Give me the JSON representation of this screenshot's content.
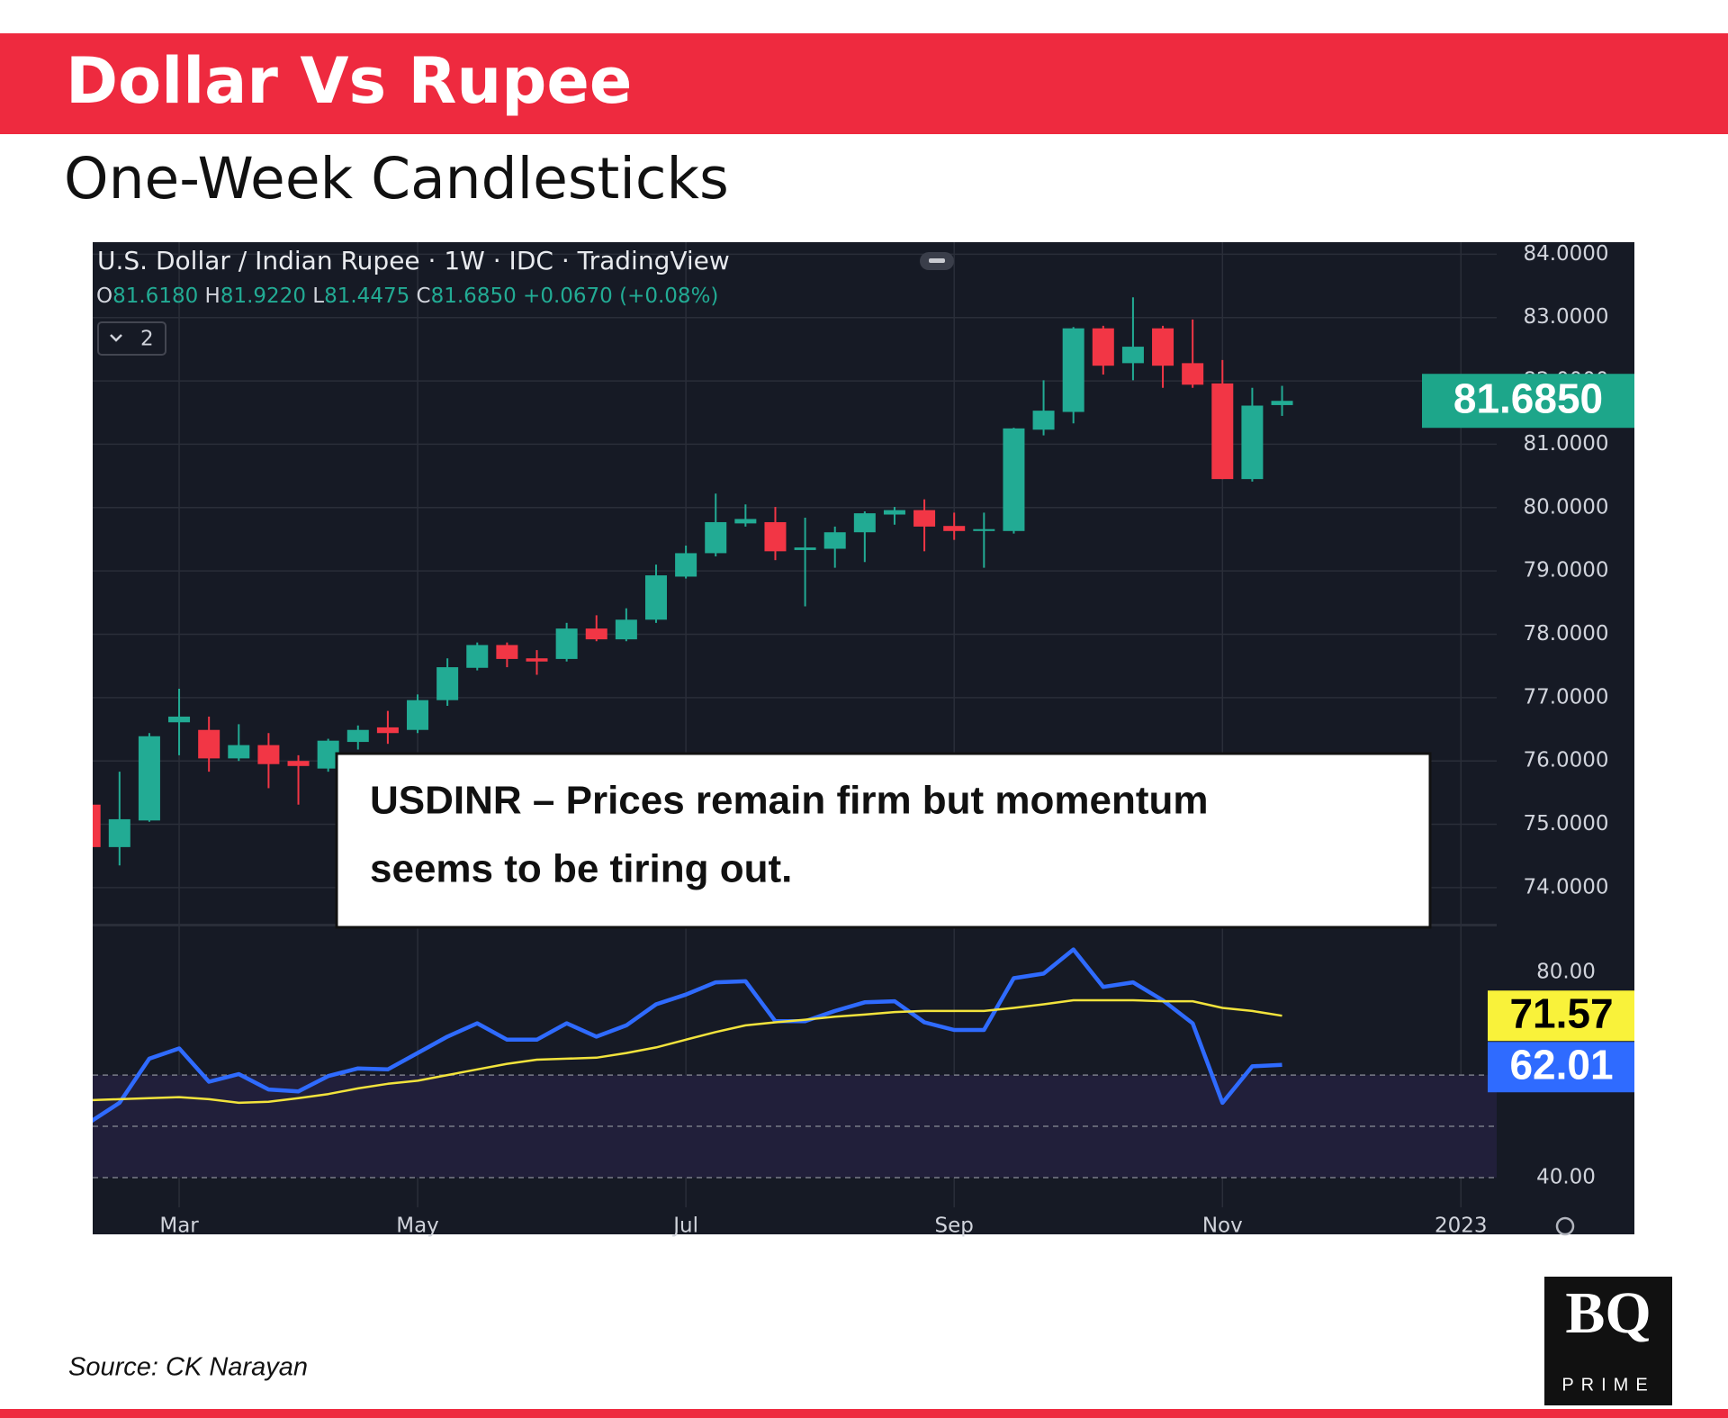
{
  "header": {
    "title": "Dollar Vs Rupee",
    "subtitle": "One-Week Candlesticks"
  },
  "chart_data": [
    {
      "type": "candlestick",
      "title": "U.S. Dollar / Indian Rupee · 1W · IDC · TradingView",
      "ohlc": [
        {
          "key": "O",
          "text": "81.6180"
        },
        {
          "key": "H",
          "text": "81.9220"
        },
        {
          "key": "L",
          "text": "81.4475"
        },
        {
          "key": "C",
          "text": "81.6850"
        }
      ],
      "change": "+0.0670 (+0.08%)",
      "pane_button": "2",
      "categories": [
        null,
        null,
        null,
        null,
        null,
        null,
        null,
        null,
        null,
        null,
        null,
        null,
        null,
        null,
        null,
        null,
        null,
        null,
        null,
        null,
        null,
        null,
        null,
        null,
        null,
        null,
        null,
        null,
        null,
        null,
        null,
        null,
        null,
        null,
        null,
        null,
        null,
        null,
        null,
        null,
        null
      ],
      "open": [
        75.31,
        74.64,
        75.06,
        76.61,
        76.49,
        76.04,
        76.25,
        76.0,
        75.88,
        76.3,
        76.53,
        76.49,
        76.96,
        77.47,
        77.83,
        77.62,
        77.61,
        78.09,
        77.92,
        78.23,
        78.91,
        79.28,
        79.75,
        79.77,
        79.33,
        79.35,
        79.61,
        79.89,
        79.96,
        79.71,
        79.63,
        79.63,
        81.23,
        81.51,
        82.83,
        82.28,
        82.83,
        82.28,
        81.96,
        80.45,
        81.618
      ],
      "high": [
        76.3,
        75.83,
        76.44,
        77.14,
        76.7,
        76.58,
        76.44,
        76.09,
        76.35,
        76.56,
        76.79,
        77.05,
        77.62,
        77.87,
        77.87,
        77.75,
        78.18,
        78.3,
        78.41,
        79.1,
        79.4,
        80.22,
        80.05,
        80.01,
        79.84,
        79.7,
        79.94,
        80.01,
        80.13,
        79.92,
        79.92,
        81.26,
        82.01,
        82.85,
        82.87,
        83.32,
        82.87,
        82.97,
        82.33,
        81.89,
        81.922
      ],
      "low": [
        74.6,
        74.35,
        75.04,
        76.09,
        75.83,
        76.0,
        75.57,
        75.31,
        75.83,
        76.18,
        76.27,
        76.44,
        76.87,
        77.43,
        77.48,
        77.36,
        77.57,
        77.89,
        77.89,
        78.18,
        78.88,
        79.23,
        79.7,
        79.17,
        78.44,
        79.05,
        79.14,
        79.73,
        79.31,
        79.49,
        79.05,
        79.59,
        81.14,
        81.33,
        82.1,
        82.01,
        81.89,
        81.89,
        80.45,
        80.41,
        81.4475
      ],
      "close": [
        74.64,
        75.08,
        76.39,
        76.7,
        76.04,
        76.25,
        75.95,
        75.92,
        76.32,
        76.49,
        76.44,
        76.96,
        77.48,
        77.83,
        77.61,
        77.57,
        78.09,
        77.92,
        78.23,
        78.93,
        79.28,
        79.77,
        79.82,
        79.31,
        79.37,
        79.61,
        79.91,
        79.96,
        79.7,
        79.63,
        79.66,
        81.25,
        81.53,
        82.83,
        82.24,
        82.54,
        82.24,
        81.94,
        80.45,
        81.61,
        81.685
      ],
      "up_color": "#22ab94",
      "down_color": "#f23645",
      "last_label": "81.6850",
      "last_label_color": "#1da68a",
      "ylim": [
        73.43,
        84.19
      ],
      "yticks": [
        {
          "value": 84,
          "label": "84.0000"
        },
        {
          "value": 83,
          "label": "83.0000"
        },
        {
          "value": 82,
          "label": "82.0000"
        },
        {
          "value": 81,
          "label": "81.0000"
        },
        {
          "value": 80,
          "label": "80.0000"
        },
        {
          "value": 79,
          "label": "79.0000"
        },
        {
          "value": 78,
          "label": "78.0000"
        },
        {
          "value": 77,
          "label": "77.0000"
        },
        {
          "value": 76,
          "label": "76.0000"
        },
        {
          "value": 75,
          "label": "75.0000"
        },
        {
          "value": 74,
          "label": "74.0000"
        }
      ],
      "grid": true,
      "annotation": [
        "USDINR – Prices remain firm but momentum",
        "seems to be tiring out."
      ]
    },
    {
      "type": "line",
      "series": [
        {
          "color": "#2f6bff",
          "values": [
            50.8,
            54.6,
            63.2,
            65.2,
            58.7,
            60.2,
            57.2,
            56.8,
            59.8,
            61.3,
            61.1,
            64.3,
            67.5,
            70.1,
            66.9,
            66.9,
            70.1,
            67.5,
            69.7,
            73.8,
            75.7,
            78.1,
            78.3,
            70.5,
            70.5,
            72.5,
            74.2,
            74.4,
            70.3,
            68.8,
            68.8,
            78.9,
            79.8,
            84.5,
            77.2,
            78.1,
            74.6,
            70.1,
            54.6,
            61.7,
            62.01
          ],
          "label_fill": "#2f6bff",
          "label_text": "#ffffff"
        },
        {
          "color": "#f2e33c",
          "values": [
            55.1,
            55.3,
            55.5,
            55.7,
            55.3,
            54.6,
            54.8,
            55.5,
            56.3,
            57.4,
            58.3,
            58.9,
            60.0,
            61.1,
            62.2,
            63.0,
            63.2,
            63.4,
            64.3,
            65.4,
            66.9,
            68.4,
            69.7,
            70.3,
            70.8,
            71.4,
            71.8,
            72.3,
            72.5,
            72.5,
            72.5,
            73.1,
            73.8,
            74.6,
            74.6,
            74.6,
            74.4,
            74.4,
            73.1,
            72.5,
            71.57
          ],
          "label_fill": "#f9f23a",
          "label_text": "#000000"
        }
      ],
      "xlim": [
        0.1,
        47.2
      ],
      "xticks": [
        {
          "value": 3,
          "label": "Mar"
        },
        {
          "value": 11,
          "label": "May"
        },
        {
          "value": 20,
          "label": "Jul"
        },
        {
          "value": 29,
          "label": "Sep"
        },
        {
          "value": 38,
          "label": "Nov"
        },
        {
          "value": 46,
          "label": "2023"
        }
      ],
      "ylim": [
        34.2,
        89.0
      ],
      "yticks": [
        {
          "value": 80,
          "label": "80.00"
        },
        {
          "value": 40,
          "label": "40.00"
        }
      ],
      "band": [
        40,
        60
      ],
      "dashed_lines": [
        60,
        50,
        40
      ]
    }
  ],
  "source": "Source: CK Narayan",
  "logo": {
    "text": "BQ",
    "subtext": "PRIME"
  }
}
